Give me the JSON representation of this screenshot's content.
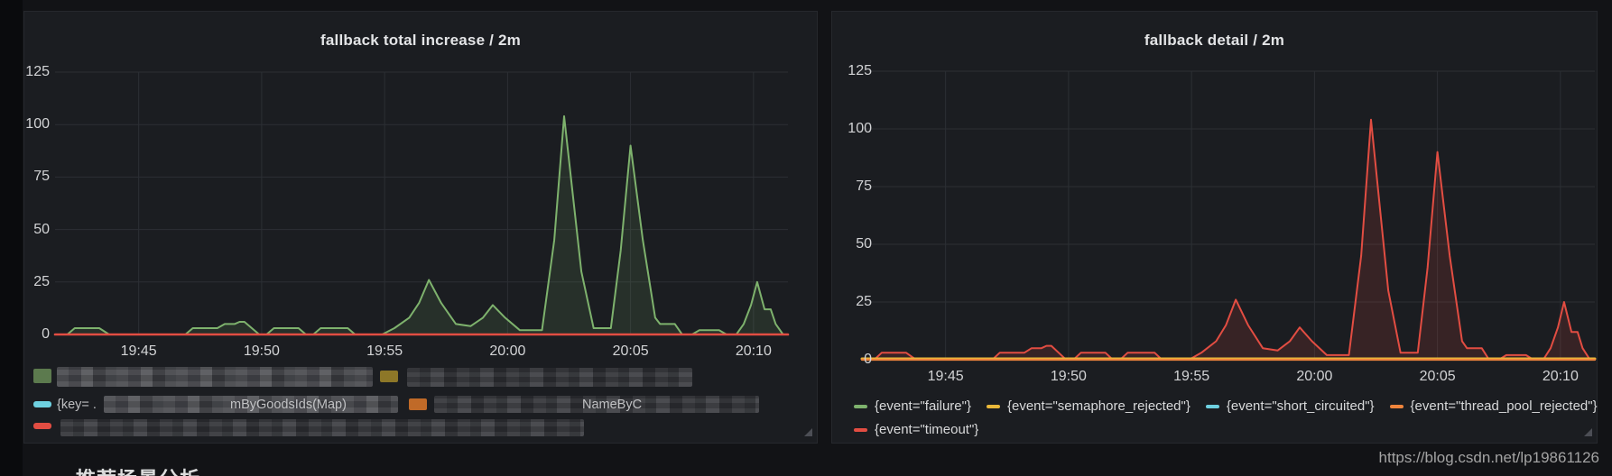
{
  "page": {
    "watermark": "https://blog.csdn.net/lp19861126",
    "bottom_heading": "推荐场景分析"
  },
  "colors": {
    "green": "#7EB26D",
    "yellow": "#EAB839",
    "cyan": "#6ED0E0",
    "orange": "#EF843C",
    "red": "#E24D42",
    "panel_bg": "#1b1d21",
    "page_bg": "#121316",
    "grid": "#2c2f34",
    "tick_text": "#d2d3d5"
  },
  "left_legend_fragments": {
    "row2_prefix": "{key= .",
    "row2_fragment": "mByGoodsIds(Map)",
    "row2b_fragment": "NameByC"
  },
  "chart_data": [
    {
      "type": "area",
      "title": "fallback total increase / 2m",
      "x_ticks": [
        "19:45",
        "19:50",
        "19:55",
        "20:00",
        "20:05",
        "20:10"
      ],
      "x_tick_minutes": [
        5,
        10,
        15,
        20,
        25,
        30
      ],
      "y_ticks": [
        "0",
        "25",
        "50",
        "75",
        "100",
        "125"
      ],
      "y_tick_values": [
        0,
        25,
        50,
        75,
        100,
        125
      ],
      "ylim": [
        0,
        137.5
      ],
      "x_domain_minutes_after_19_40": [
        1.6,
        31.4
      ],
      "grid": true,
      "legend_position": "bottom",
      "legend_redacted": true,
      "legend_rows_colors": [
        [
          "#7EB26D",
          "#EAB839"
        ],
        [
          "#6ED0E0",
          "#EF843C"
        ],
        [
          "#E24D42"
        ]
      ],
      "series": [
        {
          "name": "fallback total (redacted label)",
          "color": "#7EB26D",
          "fill": "rgba(126,178,109,0.13)",
          "points": [
            [
              1.6,
              0
            ],
            [
              2.1,
              0
            ],
            [
              2.4,
              3
            ],
            [
              3.4,
              3
            ],
            [
              3.8,
              0
            ],
            [
              6.9,
              0
            ],
            [
              7.2,
              3
            ],
            [
              8.2,
              3
            ],
            [
              8.5,
              5
            ],
            [
              8.9,
              5
            ],
            [
              9.1,
              6
            ],
            [
              9.3,
              6
            ],
            [
              9.6,
              3
            ],
            [
              9.9,
              0
            ],
            [
              10.2,
              0
            ],
            [
              10.5,
              3
            ],
            [
              11.5,
              3
            ],
            [
              11.8,
              0
            ],
            [
              12.1,
              0
            ],
            [
              12.4,
              3
            ],
            [
              13.5,
              3
            ],
            [
              13.8,
              0
            ],
            [
              14.9,
              0
            ],
            [
              15.4,
              3
            ],
            [
              16.0,
              8
            ],
            [
              16.4,
              15
            ],
            [
              16.8,
              26
            ],
            [
              17.3,
              15
            ],
            [
              17.9,
              5
            ],
            [
              18.5,
              4
            ],
            [
              19.0,
              8
            ],
            [
              19.4,
              14
            ],
            [
              19.9,
              8
            ],
            [
              20.5,
              2
            ],
            [
              21.4,
              2
            ],
            [
              21.9,
              45
            ],
            [
              22.3,
              104
            ],
            [
              23.0,
              30
            ],
            [
              23.5,
              3
            ],
            [
              24.2,
              3
            ],
            [
              24.6,
              40
            ],
            [
              25.0,
              90
            ],
            [
              25.5,
              45
            ],
            [
              26.0,
              8
            ],
            [
              26.2,
              5
            ],
            [
              26.8,
              5
            ],
            [
              27.1,
              0
            ],
            [
              27.5,
              0
            ],
            [
              27.8,
              2
            ],
            [
              28.6,
              2
            ],
            [
              28.9,
              0
            ],
            [
              29.3,
              0
            ],
            [
              29.6,
              5
            ],
            [
              29.9,
              14
            ],
            [
              30.15,
              25
            ],
            [
              30.45,
              12
            ],
            [
              30.7,
              12
            ],
            [
              30.9,
              5
            ],
            [
              31.2,
              0
            ],
            [
              31.4,
              0
            ]
          ]
        },
        {
          "name": "flat series at zero (redacted label)",
          "color": "#E24D42",
          "flat_value": 0
        }
      ]
    },
    {
      "type": "area",
      "title": "fallback detail / 2m",
      "x_ticks": [
        "19:45",
        "19:50",
        "19:55",
        "20:00",
        "20:05",
        "20:10"
      ],
      "x_tick_minutes": [
        5,
        10,
        15,
        20,
        25,
        30
      ],
      "y_ticks": [
        "0",
        "25",
        "50",
        "75",
        "100",
        "125"
      ],
      "y_tick_values": [
        0,
        25,
        50,
        75,
        100,
        125
      ],
      "ylim": [
        0,
        137.5
      ],
      "x_domain_minutes_after_19_40": [
        1.6,
        31.4
      ],
      "grid": true,
      "legend_position": "bottom",
      "legend_rows": [
        [
          {
            "label": "{event=\"failure\"}",
            "color": "#7EB26D"
          },
          {
            "label": "{event=\"semaphore_rejected\"}",
            "color": "#EAB839"
          },
          {
            "label": "{event=\"short_circuited\"}",
            "color": "#6ED0E0"
          },
          {
            "label": "{event=\"thread_pool_rejected\"}",
            "color": "#EF843C"
          }
        ],
        [
          {
            "label": "{event=\"timeout\"}",
            "color": "#E24D42"
          }
        ]
      ],
      "series": [
        {
          "name": "{event=\"timeout\"}",
          "color": "#E24D42",
          "fill": "rgba(226,77,66,0.14)",
          "points": [
            [
              1.6,
              0
            ],
            [
              2.1,
              0
            ],
            [
              2.4,
              3
            ],
            [
              3.4,
              3
            ],
            [
              3.8,
              0
            ],
            [
              6.9,
              0
            ],
            [
              7.2,
              3
            ],
            [
              8.2,
              3
            ],
            [
              8.5,
              5
            ],
            [
              8.9,
              5
            ],
            [
              9.1,
              6
            ],
            [
              9.3,
              6
            ],
            [
              9.6,
              3
            ],
            [
              9.9,
              0
            ],
            [
              10.2,
              0
            ],
            [
              10.5,
              3
            ],
            [
              11.5,
              3
            ],
            [
              11.8,
              0
            ],
            [
              12.1,
              0
            ],
            [
              12.4,
              3
            ],
            [
              13.5,
              3
            ],
            [
              13.8,
              0
            ],
            [
              14.9,
              0
            ],
            [
              15.4,
              3
            ],
            [
              16.0,
              8
            ],
            [
              16.4,
              15
            ],
            [
              16.8,
              26
            ],
            [
              17.3,
              15
            ],
            [
              17.9,
              5
            ],
            [
              18.5,
              4
            ],
            [
              19.0,
              8
            ],
            [
              19.4,
              14
            ],
            [
              19.9,
              8
            ],
            [
              20.5,
              2
            ],
            [
              21.4,
              2
            ],
            [
              21.9,
              45
            ],
            [
              22.3,
              104
            ],
            [
              23.0,
              30
            ],
            [
              23.5,
              3
            ],
            [
              24.2,
              3
            ],
            [
              24.6,
              40
            ],
            [
              25.0,
              90
            ],
            [
              25.5,
              45
            ],
            [
              26.0,
              8
            ],
            [
              26.2,
              5
            ],
            [
              26.8,
              5
            ],
            [
              27.1,
              0
            ],
            [
              27.5,
              0
            ],
            [
              27.8,
              2
            ],
            [
              28.6,
              2
            ],
            [
              28.9,
              0
            ],
            [
              29.3,
              0
            ],
            [
              29.6,
              5
            ],
            [
              29.9,
              14
            ],
            [
              30.15,
              25
            ],
            [
              30.45,
              12
            ],
            [
              30.7,
              12
            ],
            [
              30.9,
              5
            ],
            [
              31.2,
              0
            ],
            [
              31.4,
              0
            ]
          ]
        },
        {
          "name": "{event=\"semaphore_rejected\"}",
          "color": "#EAB839",
          "flat_value": 0
        },
        {
          "name": "{event=\"thread_pool_rejected\"}",
          "color": "#EF843C",
          "flat_value": 0
        }
      ]
    }
  ]
}
